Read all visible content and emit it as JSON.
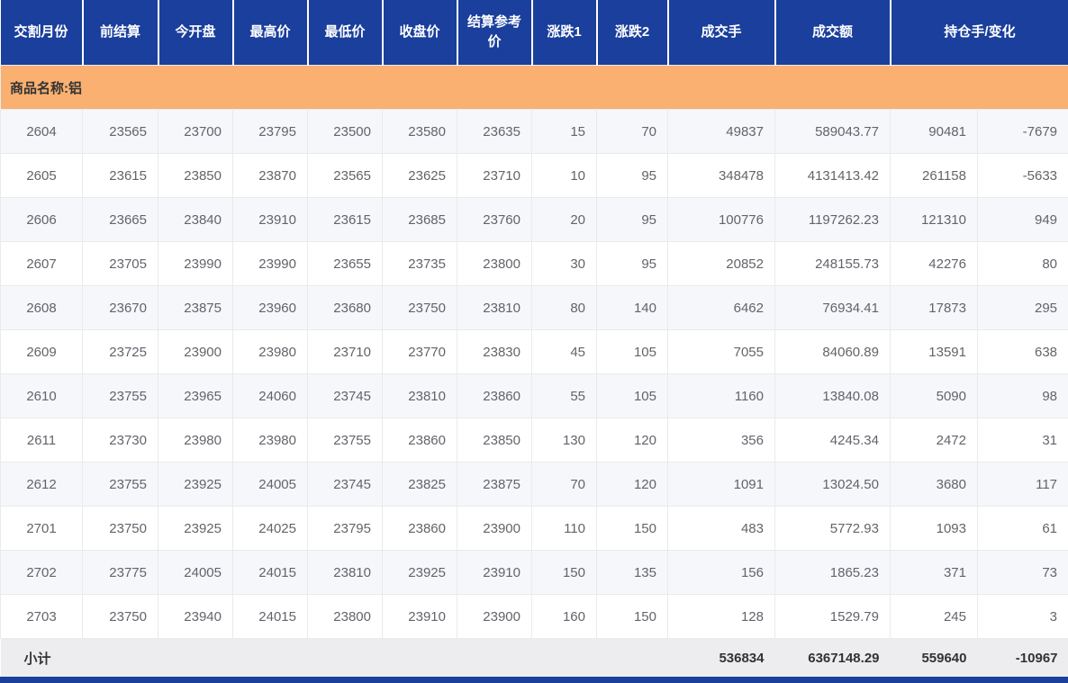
{
  "colors": {
    "header_blue": "#1a3f9c",
    "group_orange": "#f9b070",
    "stripe": "#f5f7fa",
    "subtotal_bg": "#ededef"
  },
  "table": {
    "headers": [
      "交割月份",
      "前结算",
      "今开盘",
      "最高价",
      "最低价",
      "收盘价",
      "结算参考价",
      "涨跌1",
      "涨跌2",
      "成交手",
      "成交额",
      "持仓手/变化"
    ],
    "group_label": "商品名称:铝",
    "rows": [
      [
        "2604",
        "23565",
        "23700",
        "23795",
        "23500",
        "23580",
        "23635",
        "15",
        "70",
        "49837",
        "589043.77",
        "90481",
        "-7679"
      ],
      [
        "2605",
        "23615",
        "23850",
        "23870",
        "23565",
        "23625",
        "23710",
        "10",
        "95",
        "348478",
        "4131413.42",
        "261158",
        "-5633"
      ],
      [
        "2606",
        "23665",
        "23840",
        "23910",
        "23615",
        "23685",
        "23760",
        "20",
        "95",
        "100776",
        "1197262.23",
        "121310",
        "949"
      ],
      [
        "2607",
        "23705",
        "23990",
        "23990",
        "23655",
        "23735",
        "23800",
        "30",
        "95",
        "20852",
        "248155.73",
        "42276",
        "80"
      ],
      [
        "2608",
        "23670",
        "23875",
        "23960",
        "23680",
        "23750",
        "23810",
        "80",
        "140",
        "6462",
        "76934.41",
        "17873",
        "295"
      ],
      [
        "2609",
        "23725",
        "23900",
        "23980",
        "23710",
        "23770",
        "23830",
        "45",
        "105",
        "7055",
        "84060.89",
        "13591",
        "638"
      ],
      [
        "2610",
        "23755",
        "23965",
        "24060",
        "23745",
        "23810",
        "23860",
        "55",
        "105",
        "1160",
        "13840.08",
        "5090",
        "98"
      ],
      [
        "2611",
        "23730",
        "23980",
        "23980",
        "23755",
        "23860",
        "23850",
        "130",
        "120",
        "356",
        "4245.34",
        "2472",
        "31"
      ],
      [
        "2612",
        "23755",
        "23925",
        "24005",
        "23745",
        "23825",
        "23875",
        "70",
        "120",
        "1091",
        "13024.50",
        "3680",
        "117"
      ],
      [
        "2701",
        "23750",
        "23925",
        "24025",
        "23795",
        "23860",
        "23900",
        "110",
        "150",
        "483",
        "5772.93",
        "1093",
        "61"
      ],
      [
        "2702",
        "23775",
        "24005",
        "24015",
        "23810",
        "23925",
        "23910",
        "150",
        "135",
        "156",
        "1865.23",
        "371",
        "73"
      ],
      [
        "2703",
        "23750",
        "23940",
        "24015",
        "23800",
        "23910",
        "23900",
        "160",
        "150",
        "128",
        "1529.79",
        "245",
        "3"
      ]
    ],
    "subtotal": {
      "label": "小计",
      "volume": "536834",
      "turnover": "6367148.29",
      "open_interest": "559640",
      "change": "-10967"
    }
  }
}
